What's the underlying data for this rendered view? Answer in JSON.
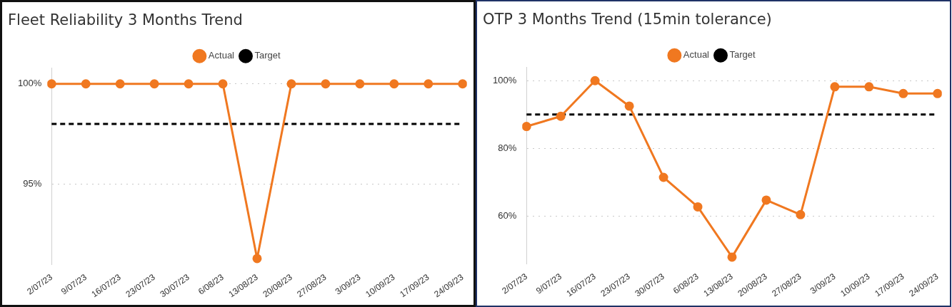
{
  "chart_data": [
    {
      "type": "line",
      "title": "Fleet Reliability 3 Months Trend",
      "categories": [
        "2/07/23",
        "9/07/23",
        "16/07/23",
        "23/07/23",
        "30/07/23",
        "6/08/23",
        "13/08/23",
        "20/08/23",
        "27/08/23",
        "3/09/23",
        "10/09/23",
        "17/09/23",
        "24/09/23"
      ],
      "series": [
        {
          "name": "Actual",
          "color": "#f07820",
          "marker": "circle",
          "line_style": "solid",
          "values": [
            100,
            100,
            100,
            100,
            100,
            100,
            91.3,
            100,
            100,
            100,
            100,
            100,
            100
          ]
        },
        {
          "name": "Target",
          "color": "#000000",
          "marker": "none",
          "line_style": "dashed",
          "values": [
            98,
            98,
            98,
            98,
            98,
            98,
            98,
            98,
            98,
            98,
            98,
            98,
            98
          ]
        }
      ],
      "ylim": [
        91,
        100.8
      ],
      "yticks": [
        {
          "value": 95,
          "label": "95%"
        },
        {
          "value": 100,
          "label": "100%"
        }
      ],
      "grid": "y",
      "legend": "top"
    },
    {
      "type": "line",
      "title": "OTP 3 Months Trend (15min tolerance)",
      "categories": [
        "2/07/23",
        "9/07/23",
        "16/07/23",
        "23/07/23",
        "30/07/23",
        "6/08/23",
        "13/08/23",
        "20/08/23",
        "27/08/23",
        "3/09/23",
        "10/09/23",
        "17/09/23",
        "24/09/23"
      ],
      "series": [
        {
          "name": "Actual",
          "color": "#f07820",
          "marker": "circle",
          "line_style": "solid",
          "values": [
            86.5,
            89.5,
            100,
            92.5,
            71.5,
            62.8,
            48,
            64.8,
            60.5,
            98.2,
            98.2,
            96.2,
            96.2
          ]
        },
        {
          "name": "Target",
          "color": "#000000",
          "marker": "none",
          "line_style": "dashed",
          "values": [
            90,
            90,
            90,
            90,
            90,
            90,
            90,
            90,
            90,
            90,
            90,
            90,
            90
          ]
        }
      ],
      "ylim": [
        46,
        104
      ],
      "yticks": [
        {
          "value": 60,
          "label": "60%"
        },
        {
          "value": 80,
          "label": "80%"
        },
        {
          "value": 100,
          "label": "100%"
        }
      ],
      "grid": "y",
      "legend": "top"
    }
  ]
}
